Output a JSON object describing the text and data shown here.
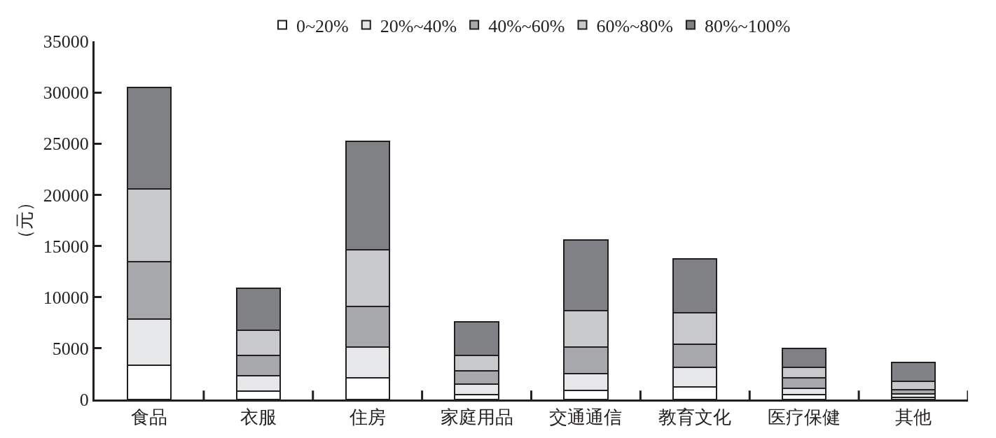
{
  "chart_data": {
    "type": "bar",
    "stacked": true,
    "ylabel": "（元）",
    "categories": [
      "食品",
      "衣服",
      "住房",
      "家庭用品",
      "交通通信",
      "教育文化",
      "医疗保健",
      "其他"
    ],
    "series": [
      {
        "name": "0~20%",
        "color": "#ffffff",
        "values": [
          3370,
          800,
          2100,
          500,
          900,
          1250,
          450,
          200
        ]
      },
      {
        "name": "20%~40%",
        "color": "#e6e7e8",
        "values": [
          4500,
          1500,
          3000,
          1000,
          1600,
          1900,
          650,
          330
        ]
      },
      {
        "name": "40%~60%",
        "color": "#a7a8ab",
        "values": [
          5600,
          2000,
          4000,
          1300,
          2600,
          2250,
          1000,
          460
        ]
      },
      {
        "name": "60%~80%",
        "color": "#c8c9cb",
        "values": [
          7100,
          2500,
          5500,
          1500,
          3600,
          3050,
          1050,
          790
        ]
      },
      {
        "name": "80%~100%",
        "color": "#808184",
        "values": [
          9900,
          4100,
          10600,
          3300,
          6900,
          5300,
          1850,
          1850
        ]
      }
    ],
    "ylim": [
      0,
      35000
    ],
    "yticks": [
      0,
      5000,
      10000,
      15000,
      20000,
      25000,
      30000,
      35000
    ],
    "grid": false,
    "legend": "top"
  }
}
